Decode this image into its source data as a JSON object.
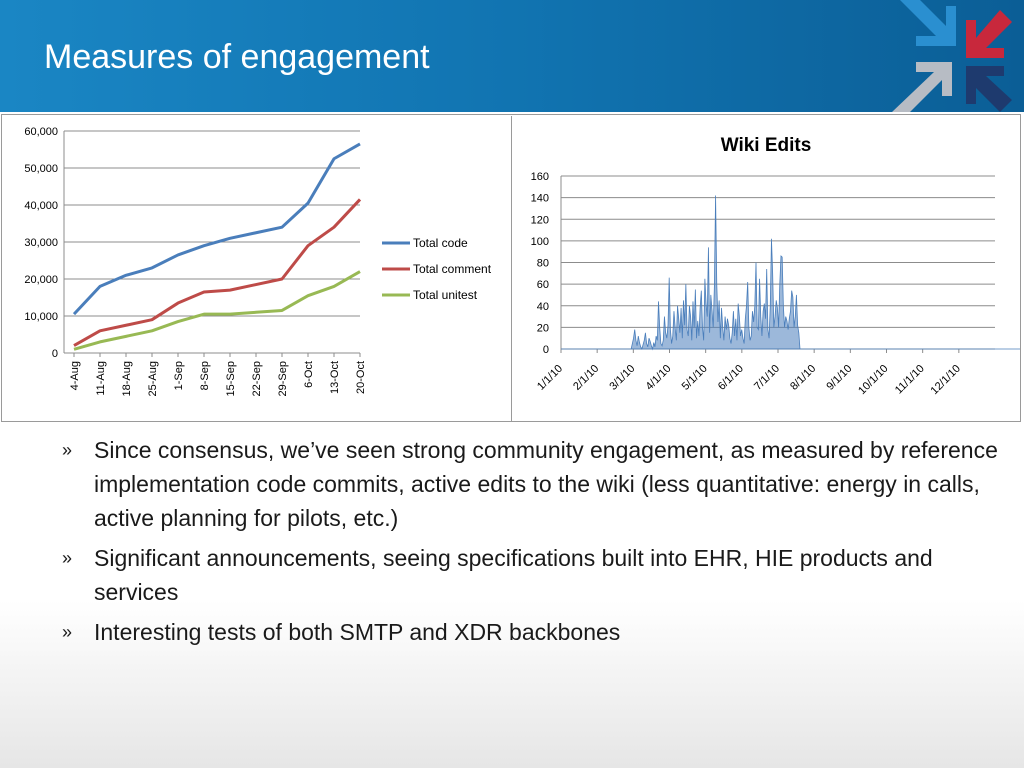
{
  "slide": {
    "title": "Measures of engagement",
    "bullets": [
      "Since consensus, we’ve seen strong community engagement, as measured by reference implementation code commits, active edits to the wiki (less quantitative: energy in calls, active planning for pilots, etc.)",
      "Significant announcements, seeing specifications built into EHR, HIE products and services",
      "Interesting tests of both SMTP and XDR backbones"
    ],
    "bullet_marker": "»",
    "colors": {
      "header": "#1174b1",
      "logo_blue": "#2a8fd0",
      "logo_red": "#c8283c",
      "logo_navy": "#1e3a6e",
      "logo_grey": "#b7bcc4"
    }
  },
  "chart_data": [
    {
      "type": "line",
      "title": "",
      "categories": [
        "4-Aug",
        "11-Aug",
        "18-Aug",
        "25-Aug",
        "1-Sep",
        "8-Sep",
        "15-Sep",
        "22-Sep",
        "29-Sep",
        "6-Oct",
        "13-Oct",
        "20-Oct"
      ],
      "series": [
        {
          "name": "Total code",
          "color": "#4a7ebb",
          "values": [
            10500,
            18000,
            21000,
            23000,
            26500,
            29000,
            31000,
            32500,
            34000,
            40500,
            52500,
            56500
          ]
        },
        {
          "name": "Total comment",
          "color": "#be4b48",
          "values": [
            2000,
            6000,
            7500,
            9000,
            13500,
            16500,
            17000,
            18500,
            20000,
            29000,
            34000,
            41500
          ]
        },
        {
          "name": "Total unitest",
          "color": "#98b954",
          "values": [
            1000,
            3000,
            4500,
            6000,
            8500,
            10500,
            10500,
            11000,
            11500,
            15500,
            18000,
            22000
          ]
        }
      ],
      "ylim": [
        0,
        60000
      ],
      "yticks": [
        "0",
        "10,000",
        "20,000",
        "30,000",
        "40,000",
        "50,000",
        "60,000"
      ],
      "grid": true,
      "legend": "right"
    },
    {
      "type": "area",
      "title": "Wiki Edits",
      "xticks": [
        "1/1/10",
        "2/1/10",
        "3/1/10",
        "4/1/10",
        "5/1/10",
        "6/1/10",
        "7/1/10",
        "8/1/10",
        "9/1/10",
        "10/1/10",
        "11/1/10",
        "12/1/10"
      ],
      "x_start": "1/1/10",
      "color": "#4a7ebb",
      "values": [
        0,
        0,
        0,
        0,
        0,
        0,
        0,
        0,
        0,
        0,
        0,
        0,
        0,
        0,
        0,
        0,
        0,
        0,
        0,
        0,
        0,
        0,
        0,
        0,
        0,
        0,
        0,
        0,
        0,
        0,
        0,
        0,
        0,
        0,
        0,
        0,
        0,
        0,
        0,
        0,
        0,
        0,
        0,
        0,
        0,
        0,
        0,
        0,
        0,
        0,
        0,
        0,
        0,
        0,
        0,
        0,
        0,
        0,
        0,
        0,
        5,
        10,
        18,
        8,
        3,
        12,
        6,
        2,
        0,
        4,
        8,
        15,
        5,
        2,
        10,
        7,
        3,
        0,
        6,
        2,
        12,
        8,
        44,
        20,
        5,
        3,
        8,
        30,
        15,
        10,
        22,
        66,
        18,
        5,
        12,
        35,
        20,
        8,
        40,
        28,
        15,
        38,
        10,
        45,
        22,
        60,
        18,
        12,
        40,
        30,
        8,
        44,
        20,
        55,
        10,
        26,
        12,
        38,
        54,
        20,
        8,
        65,
        42,
        30,
        94,
        15,
        50,
        36,
        20,
        58,
        142,
        60,
        25,
        45,
        10,
        38,
        20,
        8,
        30,
        18,
        28,
        22,
        10,
        5,
        15,
        35,
        12,
        28,
        8,
        42,
        30,
        12,
        18,
        10,
        5,
        28,
        40,
        62,
        20,
        8,
        12,
        35,
        25,
        40,
        80,
        20,
        18,
        65,
        30,
        12,
        35,
        42,
        28,
        74,
        18,
        10,
        40,
        102,
        70,
        20,
        30,
        45,
        38,
        20,
        60,
        86,
        85,
        40,
        20,
        30,
        26,
        18,
        28,
        35,
        54,
        48,
        20,
        30,
        50,
        22,
        15,
        0,
        0,
        0,
        0,
        0,
        0,
        0,
        0,
        0,
        0,
        0,
        0,
        0,
        0,
        0,
        0,
        0,
        0,
        0,
        0,
        0,
        0,
        0,
        0,
        0,
        0,
        0,
        0,
        0,
        0,
        0,
        0,
        0,
        0,
        0,
        0,
        0,
        0,
        0,
        0,
        0,
        0,
        0,
        0,
        0,
        0,
        0,
        0,
        0,
        0,
        0,
        0,
        0,
        0,
        0,
        0,
        0,
        0,
        0,
        0,
        0,
        0,
        0,
        0,
        0,
        0,
        0,
        0,
        0,
        0,
        0,
        0,
        0,
        0,
        0,
        0,
        0,
        0,
        0,
        0,
        0,
        0,
        0,
        0,
        0,
        0,
        0,
        0,
        0,
        0,
        0,
        0,
        0,
        0,
        0,
        0,
        0,
        0,
        0,
        0,
        0,
        0,
        0,
        0,
        0,
        0,
        0,
        0,
        0,
        0,
        0,
        0,
        0,
        0,
        0,
        0,
        0,
        0,
        0,
        0,
        0,
        0,
        0,
        0,
        0,
        0,
        0,
        0,
        0,
        0,
        0,
        0,
        0,
        0,
        0,
        0,
        0,
        0,
        0,
        0,
        0,
        0,
        0,
        0,
        0,
        0,
        0,
        0,
        0,
        0,
        0,
        0,
        0,
        0,
        0,
        0,
        0,
        0,
        0,
        0,
        0,
        0,
        0,
        0,
        0,
        0,
        0,
        0,
        0,
        0,
        0,
        0,
        0,
        0,
        0,
        0,
        0,
        0,
        0,
        0,
        0,
        0,
        0,
        0,
        0,
        0,
        0,
        0,
        0,
        0,
        0,
        0,
        0,
        0,
        0,
        0,
        0,
        0,
        0,
        0,
        0,
        0,
        0,
        0,
        0,
        0,
        0,
        0,
        0,
        0,
        0,
        0,
        0,
        0,
        0,
        0,
        0,
        0,
        0,
        0,
        0,
        0,
        0,
        0,
        0
      ],
      "ylim": [
        0,
        160
      ],
      "yticks": [
        "0",
        "20",
        "40",
        "60",
        "80",
        "100",
        "120",
        "140",
        "160"
      ],
      "grid": true
    }
  ]
}
